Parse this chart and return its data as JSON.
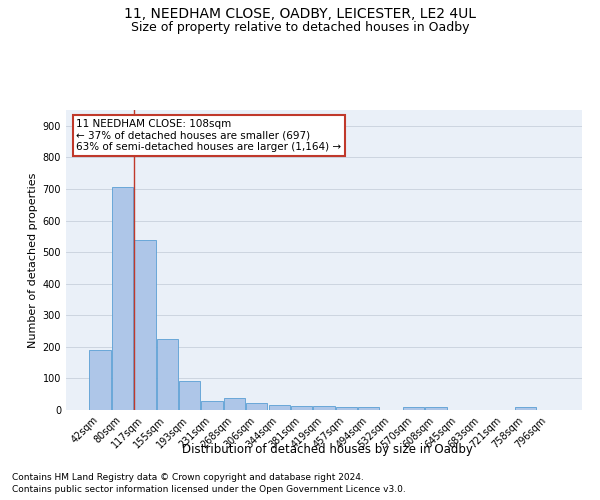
{
  "title1": "11, NEEDHAM CLOSE, OADBY, LEICESTER, LE2 4UL",
  "title2": "Size of property relative to detached houses in Oadby",
  "xlabel": "Distribution of detached houses by size in Oadby",
  "ylabel": "Number of detached properties",
  "categories": [
    "42sqm",
    "80sqm",
    "117sqm",
    "155sqm",
    "193sqm",
    "231sqm",
    "268sqm",
    "306sqm",
    "344sqm",
    "381sqm",
    "419sqm",
    "457sqm",
    "494sqm",
    "532sqm",
    "570sqm",
    "608sqm",
    "645sqm",
    "683sqm",
    "721sqm",
    "758sqm",
    "796sqm"
  ],
  "values": [
    190,
    706,
    537,
    224,
    91,
    27,
    37,
    22,
    15,
    13,
    13,
    11,
    10,
    0,
    10,
    8,
    0,
    0,
    0,
    10,
    0
  ],
  "bar_color": "#aec6e8",
  "bar_edge_color": "#5a9fd4",
  "annotation_line_color": "#c0392b",
  "annotation_box_text": "11 NEEDHAM CLOSE: 108sqm\n← 37% of detached houses are smaller (697)\n63% of semi-detached houses are larger (1,164) →",
  "ylim": [
    0,
    950
  ],
  "yticks": [
    0,
    100,
    200,
    300,
    400,
    500,
    600,
    700,
    800,
    900
  ],
  "background_color": "#ffffff",
  "plot_bg_color": "#eaf0f8",
  "grid_color": "#c8d0dc",
  "footer_line1": "Contains HM Land Registry data © Crown copyright and database right 2024.",
  "footer_line2": "Contains public sector information licensed under the Open Government Licence v3.0.",
  "title1_fontsize": 10,
  "title2_fontsize": 9,
  "xlabel_fontsize": 8.5,
  "ylabel_fontsize": 8,
  "tick_fontsize": 7,
  "annotation_fontsize": 7.5,
  "footer_fontsize": 6.5
}
